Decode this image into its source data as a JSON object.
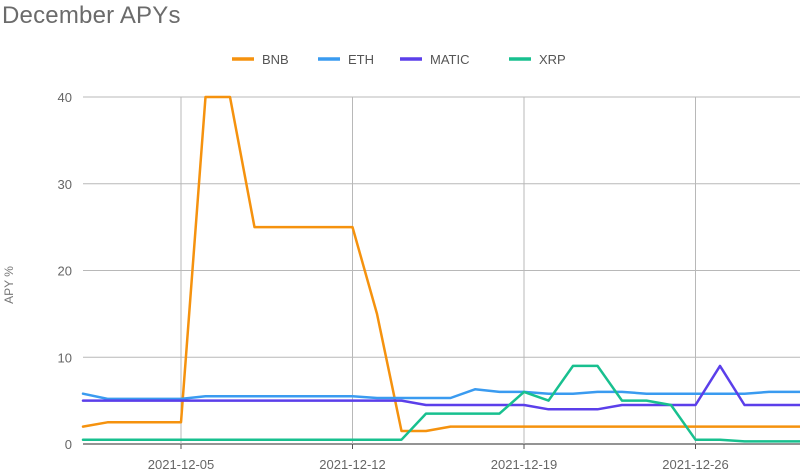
{
  "chart_data": {
    "type": "line",
    "title": "December APYs",
    "ylabel": "APY %",
    "xlabel": "",
    "ylim": [
      0,
      40
    ],
    "yticks": [
      0,
      10,
      20,
      30,
      40
    ],
    "xticks": [
      "2021-12-05",
      "2021-12-12",
      "2021-12-19",
      "2021-12-26"
    ],
    "x": [
      "2021-12-01",
      "2021-12-02",
      "2021-12-03",
      "2021-12-04",
      "2021-12-05",
      "2021-12-06",
      "2021-12-07",
      "2021-12-08",
      "2021-12-09",
      "2021-12-10",
      "2021-12-11",
      "2021-12-12",
      "2021-12-13",
      "2021-12-14",
      "2021-12-15",
      "2021-12-16",
      "2021-12-17",
      "2021-12-18",
      "2021-12-19",
      "2021-12-20",
      "2021-12-21",
      "2021-12-22",
      "2021-12-23",
      "2021-12-24",
      "2021-12-25",
      "2021-12-26",
      "2021-12-27",
      "2021-12-28",
      "2021-12-29",
      "2021-12-30",
      "2021-12-31"
    ],
    "grid": true,
    "legend_position": "top-center",
    "series": [
      {
        "name": "BNB",
        "color": "#F5920E",
        "values": [
          2,
          2.5,
          2.5,
          2.5,
          2.5,
          40,
          40,
          25,
          25,
          25,
          25,
          25,
          15,
          1.5,
          1.5,
          2,
          2,
          2,
          2,
          2,
          2,
          2,
          2,
          2,
          2,
          2,
          2,
          2,
          2,
          2,
          2
        ]
      },
      {
        "name": "ETH",
        "color": "#3A9BF0",
        "values": [
          5.8,
          5.2,
          5.2,
          5.2,
          5.2,
          5.5,
          5.5,
          5.5,
          5.5,
          5.5,
          5.5,
          5.5,
          5.3,
          5.3,
          5.3,
          5.3,
          6.3,
          6,
          6,
          5.8,
          5.8,
          6,
          6,
          5.8,
          5.8,
          5.8,
          5.8,
          5.8,
          6,
          6,
          6
        ]
      },
      {
        "name": "MATIC",
        "color": "#5B3FEA",
        "values": [
          5,
          5,
          5,
          5,
          5,
          5,
          5,
          5,
          5,
          5,
          5,
          5,
          5,
          5,
          4.5,
          4.5,
          4.5,
          4.5,
          4.5,
          4,
          4,
          4,
          4.5,
          4.5,
          4.5,
          4.5,
          9,
          4.5,
          4.5,
          4.5,
          4.5
        ]
      },
      {
        "name": "XRP",
        "color": "#18C08F",
        "values": [
          0.5,
          0.5,
          0.5,
          0.5,
          0.5,
          0.5,
          0.5,
          0.5,
          0.5,
          0.5,
          0.5,
          0.5,
          0.5,
          0.5,
          3.5,
          3.5,
          3.5,
          3.5,
          6,
          5,
          9,
          9,
          5,
          5,
          4.5,
          0.5,
          0.5,
          0.3,
          0.3,
          0.3,
          0.3
        ]
      }
    ]
  }
}
